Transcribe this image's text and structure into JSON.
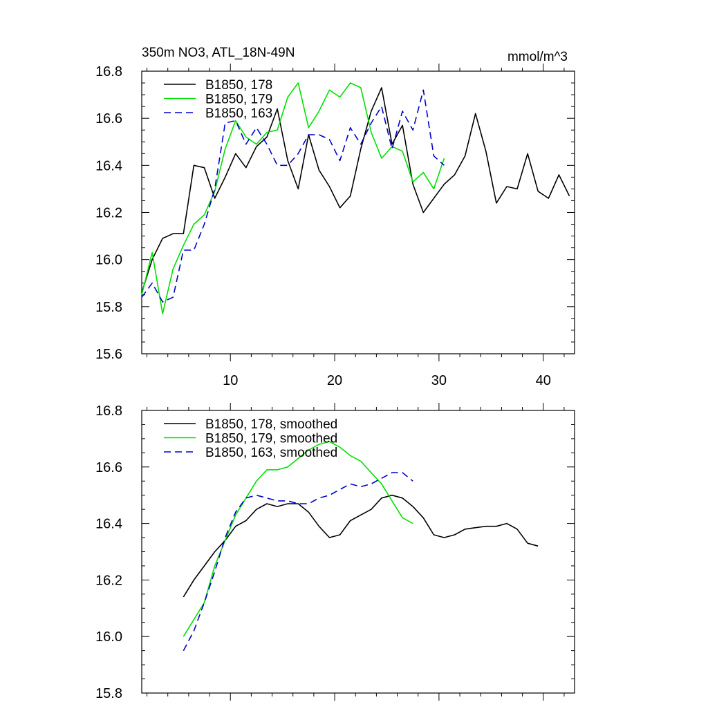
{
  "chart_data": [
    {
      "type": "line",
      "title": "350m NO3, ATL_18N-49N",
      "units": "mmol/m^3",
      "xlim": [
        1.5,
        43.0
      ],
      "ylim": [
        15.6,
        16.8
      ],
      "xticks": [
        10,
        20,
        30,
        40
      ],
      "xtick_labels": [
        "10",
        "20",
        "30",
        "40"
      ],
      "yticks": [
        15.6,
        15.8,
        16.0,
        16.2,
        16.4,
        16.6,
        16.8
      ],
      "ytick_labels": [
        "15.6",
        "15.8",
        "16.0",
        "16.2",
        "16.4",
        "16.6",
        "16.8"
      ],
      "series": [
        {
          "name": "B1850, 178",
          "color": "#000000",
          "dash": "solid",
          "x": [
            1.5,
            2.5,
            3.5,
            4.5,
            5.5,
            6.5,
            7.5,
            8.5,
            9.5,
            10.5,
            11.5,
            12.5,
            13.5,
            14.5,
            15.5,
            16.5,
            17.5,
            18.5,
            19.5,
            20.5,
            21.5,
            22.5,
            23.5,
            24.5,
            25.5,
            26.5,
            27.5,
            28.5,
            29.5,
            30.5,
            31.5,
            32.5,
            33.5,
            34.5,
            35.5,
            36.5,
            37.5,
            38.5,
            39.5,
            40.5,
            41.5,
            42.5
          ],
          "y": [
            15.86,
            16.0,
            16.09,
            16.11,
            16.11,
            16.4,
            16.39,
            16.26,
            16.35,
            16.45,
            16.39,
            16.48,
            16.52,
            16.64,
            16.42,
            16.3,
            16.53,
            16.38,
            16.31,
            16.22,
            16.27,
            16.47,
            16.63,
            16.73,
            16.49,
            16.57,
            16.32,
            16.2,
            16.26,
            16.32,
            16.36,
            16.44,
            16.62,
            16.46,
            16.24,
            16.31,
            16.3,
            16.45,
            16.29,
            16.26,
            16.36,
            16.27
          ]
        },
        {
          "name": "B1850, 179",
          "color": "#00e000",
          "dash": "solid",
          "x": [
            1.5,
            2.5,
            3.5,
            4.5,
            5.5,
            6.5,
            7.5,
            8.5,
            9.5,
            10.5,
            11.5,
            12.5,
            13.5,
            14.5,
            15.5,
            16.5,
            17.5,
            18.5,
            19.5,
            20.5,
            21.5,
            22.5,
            23.5,
            24.5,
            25.5,
            26.5,
            27.5,
            28.5,
            29.5,
            30.5
          ],
          "y": [
            15.85,
            16.03,
            15.77,
            15.96,
            16.06,
            16.15,
            16.19,
            16.29,
            16.47,
            16.59,
            16.52,
            16.49,
            16.54,
            16.55,
            16.69,
            16.75,
            16.56,
            16.63,
            16.72,
            16.69,
            16.75,
            16.73,
            16.54,
            16.43,
            16.48,
            16.46,
            16.33,
            16.37,
            16.3,
            16.43
          ]
        },
        {
          "name": "B1850, 163",
          "color": "#0000cc",
          "dash": "dashed",
          "x": [
            1.5,
            2.5,
            3.5,
            4.5,
            5.5,
            6.5,
            7.5,
            8.5,
            9.5,
            10.5,
            11.5,
            12.5,
            13.5,
            14.5,
            15.5,
            16.5,
            17.5,
            18.5,
            19.5,
            20.5,
            21.5,
            22.5,
            23.5,
            24.5,
            25.5,
            26.5,
            27.5,
            28.5,
            29.5,
            30.5
          ],
          "y": [
            15.84,
            15.9,
            15.82,
            15.84,
            16.04,
            16.04,
            16.15,
            16.3,
            16.58,
            16.59,
            16.49,
            16.56,
            16.49,
            16.4,
            16.4,
            16.45,
            16.53,
            16.53,
            16.51,
            16.42,
            16.56,
            16.49,
            16.58,
            16.65,
            16.47,
            16.63,
            16.55,
            16.72,
            16.44,
            16.4
          ]
        }
      ]
    },
    {
      "type": "line",
      "title": "",
      "units": "",
      "xlim": [
        1.5,
        43.0
      ],
      "ylim": [
        15.8,
        16.8
      ],
      "xticks": [
        10,
        20,
        30,
        40
      ],
      "xtick_labels": [
        "",
        "",
        "",
        ""
      ],
      "yticks": [
        15.8,
        16.0,
        16.2,
        16.4,
        16.6,
        16.8
      ],
      "ytick_labels": [
        "15.8",
        "16.0",
        "16.2",
        "16.4",
        "16.6",
        "16.8"
      ],
      "series": [
        {
          "name": "B1850, 178, smoothed",
          "color": "#000000",
          "dash": "solid",
          "x": [
            5.5,
            6.5,
            7.5,
            8.5,
            9.5,
            10.5,
            11.5,
            12.5,
            13.5,
            14.5,
            15.5,
            16.5,
            17.5,
            18.5,
            19.5,
            20.5,
            21.5,
            22.5,
            23.5,
            24.5,
            25.5,
            26.5,
            27.5,
            28.5,
            29.5,
            30.5,
            31.5,
            32.5,
            33.5,
            34.5,
            35.5,
            36.5,
            37.5,
            38.5,
            39.5
          ],
          "y": [
            16.14,
            16.2,
            16.25,
            16.3,
            16.34,
            16.39,
            16.41,
            16.45,
            16.47,
            16.46,
            16.47,
            16.47,
            16.44,
            16.39,
            16.35,
            16.36,
            16.41,
            16.43,
            16.45,
            16.49,
            16.5,
            16.49,
            16.46,
            16.42,
            16.36,
            16.35,
            16.36,
            16.38,
            16.385,
            16.39,
            16.39,
            16.4,
            16.38,
            16.33,
            16.32
          ]
        },
        {
          "name": "B1850, 179, smoothed",
          "color": "#00e000",
          "dash": "solid",
          "x": [
            5.5,
            6.5,
            7.5,
            8.5,
            9.5,
            10.5,
            11.5,
            12.5,
            13.5,
            14.5,
            15.5,
            16.5,
            17.5,
            18.5,
            19.5,
            20.5,
            21.5,
            22.5,
            23.5,
            24.5,
            25.5,
            26.5,
            27.5
          ],
          "y": [
            16.0,
            16.06,
            16.12,
            16.25,
            16.34,
            16.43,
            16.49,
            16.55,
            16.59,
            16.59,
            16.6,
            16.63,
            16.66,
            16.68,
            16.69,
            16.67,
            16.64,
            16.62,
            16.58,
            16.54,
            16.48,
            16.42,
            16.4
          ]
        },
        {
          "name": "B1850, 163, smoothed",
          "color": "#0000cc",
          "dash": "dashed",
          "x": [
            5.5,
            6.5,
            7.5,
            8.5,
            9.5,
            10.5,
            11.5,
            12.5,
            13.5,
            14.5,
            15.5,
            16.5,
            17.5,
            18.5,
            19.5,
            20.5,
            21.5,
            22.5,
            23.5,
            24.5,
            25.5,
            26.5,
            27.5
          ],
          "y": [
            15.95,
            16.02,
            16.12,
            16.23,
            16.35,
            16.44,
            16.49,
            16.5,
            16.49,
            16.48,
            16.48,
            16.47,
            16.47,
            16.49,
            16.5,
            16.52,
            16.54,
            16.53,
            16.54,
            16.56,
            16.58,
            16.58,
            16.55
          ]
        }
      ]
    }
  ]
}
